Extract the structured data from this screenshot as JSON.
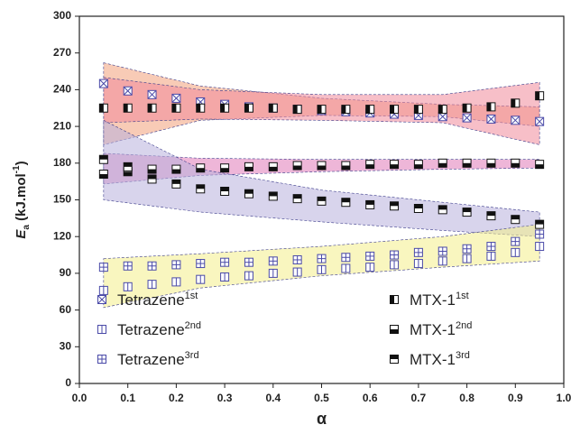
{
  "chart_data": {
    "type": "scatter",
    "x": [
      0.05,
      0.1,
      0.15,
      0.2,
      0.25,
      0.3,
      0.35,
      0.4,
      0.45,
      0.5,
      0.55,
      0.6,
      0.65,
      0.7,
      0.75,
      0.8,
      0.85,
      0.9,
      0.95
    ],
    "xlabel": "α",
    "ylabel": {
      "symbol": "E",
      "sub": "a",
      "unit": " (kJ.mol",
      "unit_sup": "-1",
      "close": ")"
    },
    "xlim": [
      0,
      1
    ],
    "xticks": [
      {
        "value": 0,
        "label": "0.0"
      },
      {
        "value": 0.1,
        "label": "0.1"
      },
      {
        "value": 0.2,
        "label": "0.2"
      },
      {
        "value": 0.3,
        "label": "0.3"
      },
      {
        "value": 0.4,
        "label": "0.4"
      },
      {
        "value": 0.5,
        "label": "0.5"
      },
      {
        "value": 0.6,
        "label": "0.6"
      },
      {
        "value": 0.7,
        "label": "0.7"
      },
      {
        "value": 0.8,
        "label": "0.8"
      },
      {
        "value": 0.9,
        "label": "0.9"
      },
      {
        "value": 1,
        "label": "1.0"
      }
    ],
    "ylim": [
      0,
      300
    ],
    "yticks": [
      0,
      30,
      60,
      90,
      120,
      150,
      180,
      210,
      240,
      270,
      300
    ],
    "bands": {
      "x": [
        0.05,
        0.25,
        0.5,
        0.75,
        0.95
      ],
      "items": [
        {
          "color": "#f2a07a",
          "upper": [
            262,
            243,
            233,
            228,
            226
          ],
          "lower": [
            195,
            215,
            219,
            218,
            210
          ]
        },
        {
          "color": "#f08a9a",
          "upper": [
            250,
            240,
            236,
            236,
            246
          ],
          "lower": [
            213,
            216,
            215,
            213,
            195
          ]
        },
        {
          "color": "#e07ab8",
          "upper": [
            188,
            184,
            183,
            183,
            183
          ],
          "lower": [
            163,
            170,
            173,
            175,
            176
          ]
        },
        {
          "color": "#b8b0dc",
          "upper": [
            215,
            175,
            158,
            148,
            140
          ],
          "lower": [
            150,
            140,
            132,
            125,
            120
          ]
        },
        {
          "color": "#f4ee8a",
          "upper": [
            102,
            106,
            112,
            120,
            130
          ],
          "lower": [
            62,
            78,
            88,
            95,
            100
          ]
        }
      ]
    },
    "series": [
      {
        "name": "Tetrazene",
        "sup": "1st",
        "marker": "xbox",
        "color": "#4a4aa8",
        "values": [
          245,
          239,
          236,
          233,
          230,
          228,
          226,
          225,
          224,
          223,
          222,
          221,
          220,
          219,
          218,
          217,
          216,
          215,
          214
        ]
      },
      {
        "name": "Tetrazene",
        "sup": "2nd",
        "marker": "vline",
        "color": "#4a4aa8",
        "values": [
          76,
          79,
          81,
          83,
          85,
          87,
          88,
          90,
          91,
          93,
          94,
          95,
          97,
          98,
          100,
          102,
          104,
          107,
          112
        ]
      },
      {
        "name": "Tetrazene",
        "sup": "3rd",
        "marker": "plus",
        "color": "#4a4aa8",
        "values": [
          95,
          96,
          96,
          97,
          98,
          99,
          99,
          100,
          101,
          102,
          103,
          104,
          105,
          107,
          108,
          110,
          112,
          116,
          122
        ]
      },
      {
        "name": "MTX-1",
        "sup": "1st",
        "marker": "half-left",
        "color": "#111111",
        "values": [
          225,
          225,
          225,
          225,
          225,
          225,
          225,
          225,
          224,
          224,
          224,
          224,
          224,
          224,
          224,
          225,
          226,
          229,
          235
        ]
      },
      {
        "name": "MTX-1",
        "sup": "2nd",
        "marker": "half-bottom",
        "color": "#111111",
        "values": [
          171,
          173,
          175,
          175,
          176,
          176,
          177,
          177,
          178,
          178,
          178,
          179,
          179,
          179,
          180,
          180,
          180,
          180,
          179
        ]
      },
      {
        "name": "MTX-1",
        "sup": "3rd",
        "marker": "half-top",
        "color": "#111111",
        "values": [
          183,
          177,
          167,
          163,
          159,
          157,
          155,
          153,
          151,
          149,
          148,
          146,
          145,
          143,
          142,
          140,
          137,
          134,
          130
        ]
      }
    ]
  }
}
